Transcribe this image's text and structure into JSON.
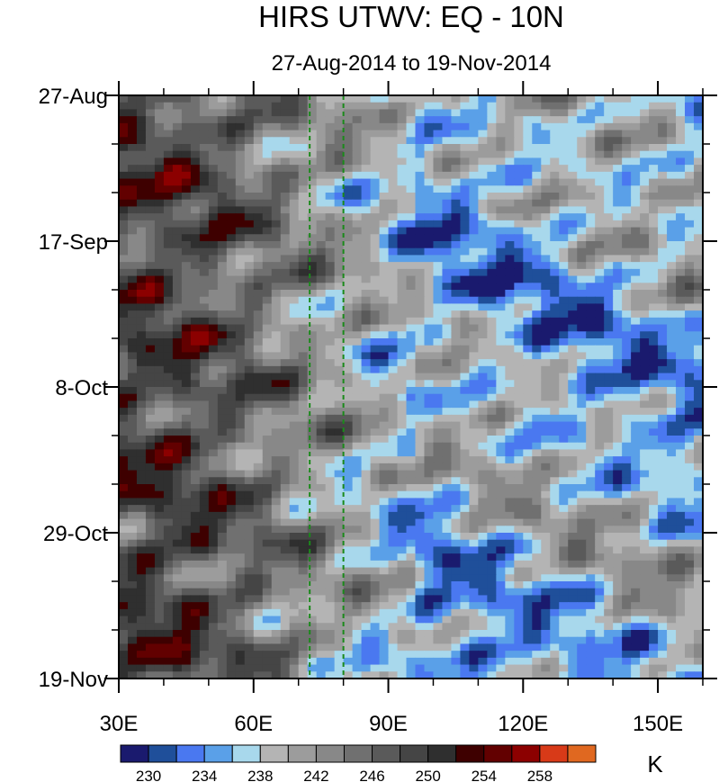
{
  "chart_data": {
    "type": "heatmap",
    "title": "HIRS UTWV: EQ - 10N",
    "subtitle": "27-Aug-2014 to 19-Nov-2014",
    "x_axis": {
      "range": [
        30,
        160
      ],
      "ticks": [
        {
          "value": 30,
          "label": "30E"
        },
        {
          "value": 60,
          "label": "60E"
        },
        {
          "value": 90,
          "label": "90E"
        },
        {
          "value": 120,
          "label": "120E"
        },
        {
          "value": 150,
          "label": "150E"
        }
      ]
    },
    "y_axis": {
      "range_days": [
        0,
        84
      ],
      "inverted": true,
      "ticks": [
        {
          "value": 0,
          "label": "27-Aug"
        },
        {
          "value": 21,
          "label": "17-Sep"
        },
        {
          "value": 42,
          "label": "8-Oct"
        },
        {
          "value": 63,
          "label": "29-Oct"
        },
        {
          "value": 84,
          "label": "19-Nov"
        }
      ]
    },
    "reference_lines_longitude": [
      72.5,
      80
    ],
    "reference_line_color": "#1a8a1a",
    "colorbar": {
      "units": "K",
      "labels": [
        {
          "value": 230,
          "label": "230"
        },
        {
          "value": 234,
          "label": "234"
        },
        {
          "value": 238,
          "label": "238"
        },
        {
          "value": 242,
          "label": "242"
        },
        {
          "value": 246,
          "label": "246"
        },
        {
          "value": 250,
          "label": "250"
        },
        {
          "value": 254,
          "label": "254"
        },
        {
          "value": 258,
          "label": "258"
        }
      ],
      "levels": [
        228,
        230,
        232,
        234,
        236,
        238,
        240,
        242,
        244,
        246,
        248,
        250,
        252,
        254,
        256,
        258,
        260
      ],
      "colors": [
        "#1a1a6e",
        "#1f4f9a",
        "#4a78f0",
        "#5aa0e8",
        "#a8d8ec",
        "#b4b4b4",
        "#9c9c9c",
        "#888888",
        "#707070",
        "#5a5a5a",
        "#454545",
        "#2f2f2f",
        "#3e0000",
        "#620000",
        "#8c0000",
        "#d83a18",
        "#e06820"
      ]
    }
  }
}
